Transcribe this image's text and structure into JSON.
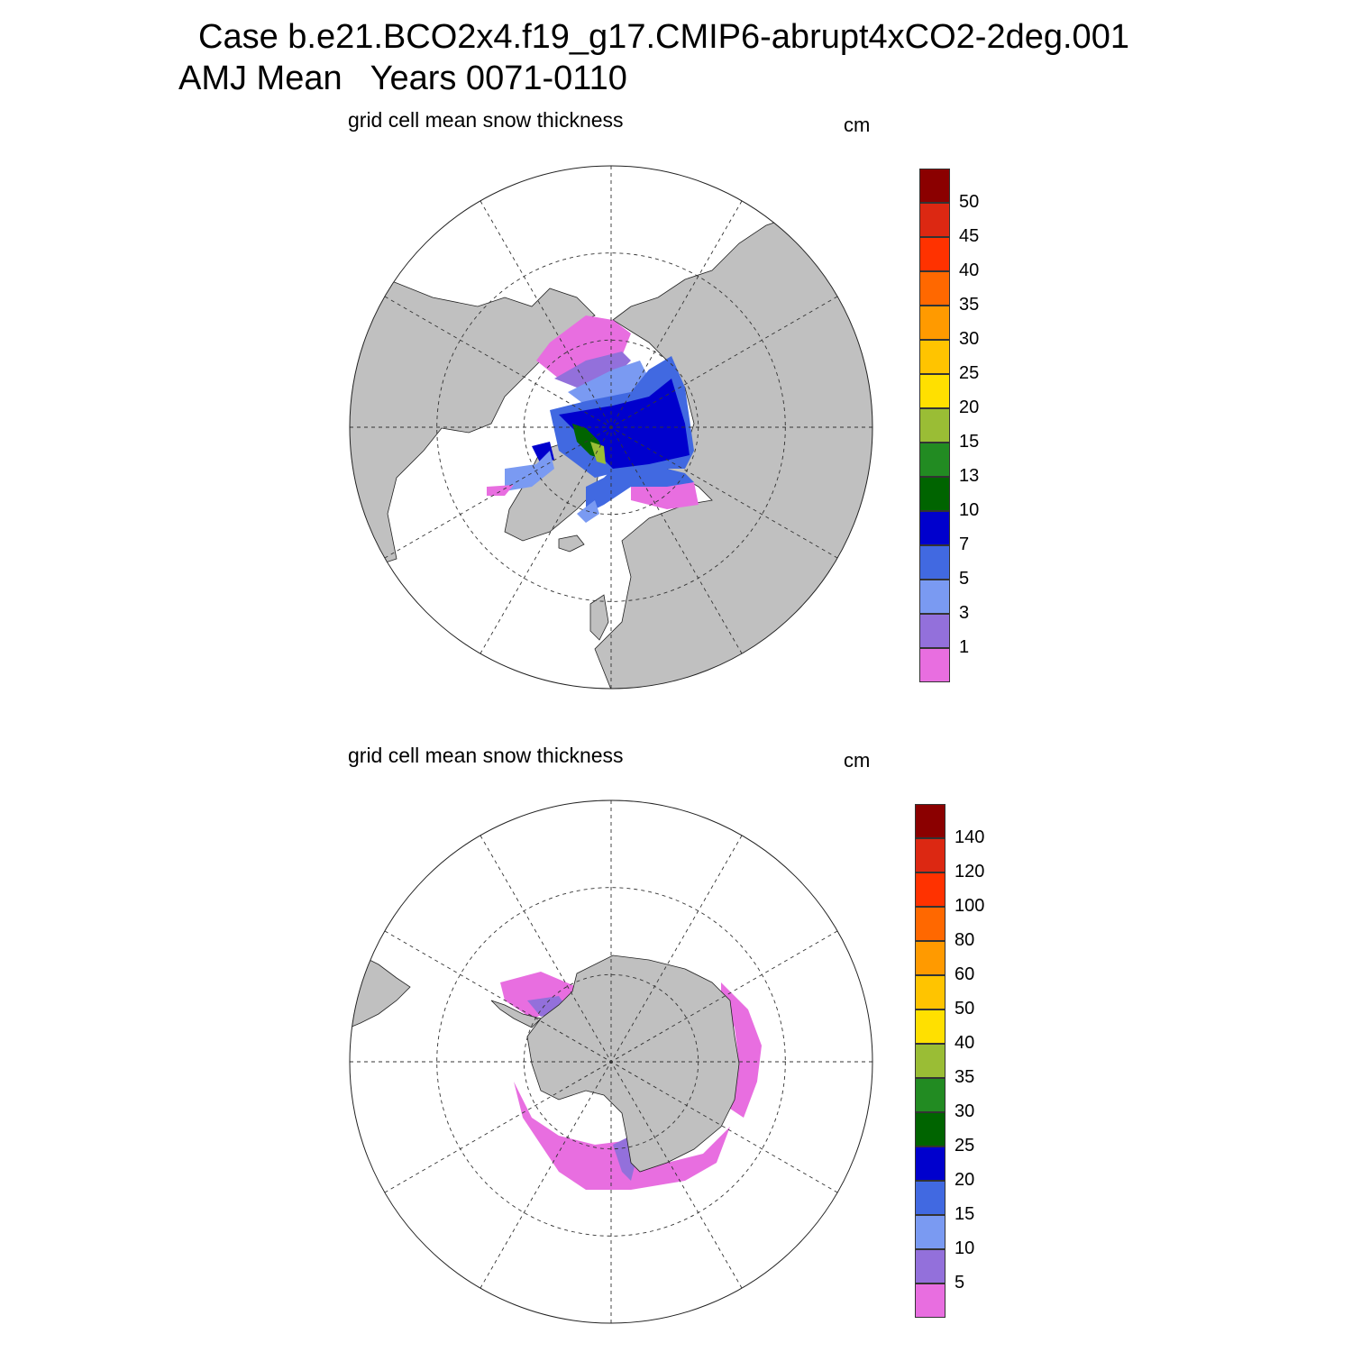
{
  "header": {
    "line1": "Case b.e21.BCO2x4.f19_g17.CMIP6-abrupt4xCO2-2deg.001",
    "line2": "AMJ Mean   Years 0071-0110"
  },
  "colors": [
    "#e86ee0",
    "#9370db",
    "#7a9af2",
    "#4169e1",
    "#0000cd",
    "#006400",
    "#228b22",
    "#9abd35",
    "#ffe000",
    "#ffc400",
    "#ff9a00",
    "#ff6800",
    "#ff3200",
    "#dc2812",
    "#8b0000"
  ],
  "panels": [
    {
      "name": "north",
      "title": "grid cell mean snow thickness",
      "units": "cm",
      "levels": [
        "1",
        "3",
        "5",
        "7",
        "10",
        "13",
        "15",
        "20",
        "25",
        "30",
        "35",
        "40",
        "45",
        "50"
      ]
    },
    {
      "name": "south",
      "title": "grid cell mean snow thickness",
      "units": "cm",
      "levels": [
        "5",
        "10",
        "15",
        "20",
        "25",
        "30",
        "35",
        "40",
        "50",
        "60",
        "80",
        "100",
        "120",
        "140"
      ]
    }
  ]
}
